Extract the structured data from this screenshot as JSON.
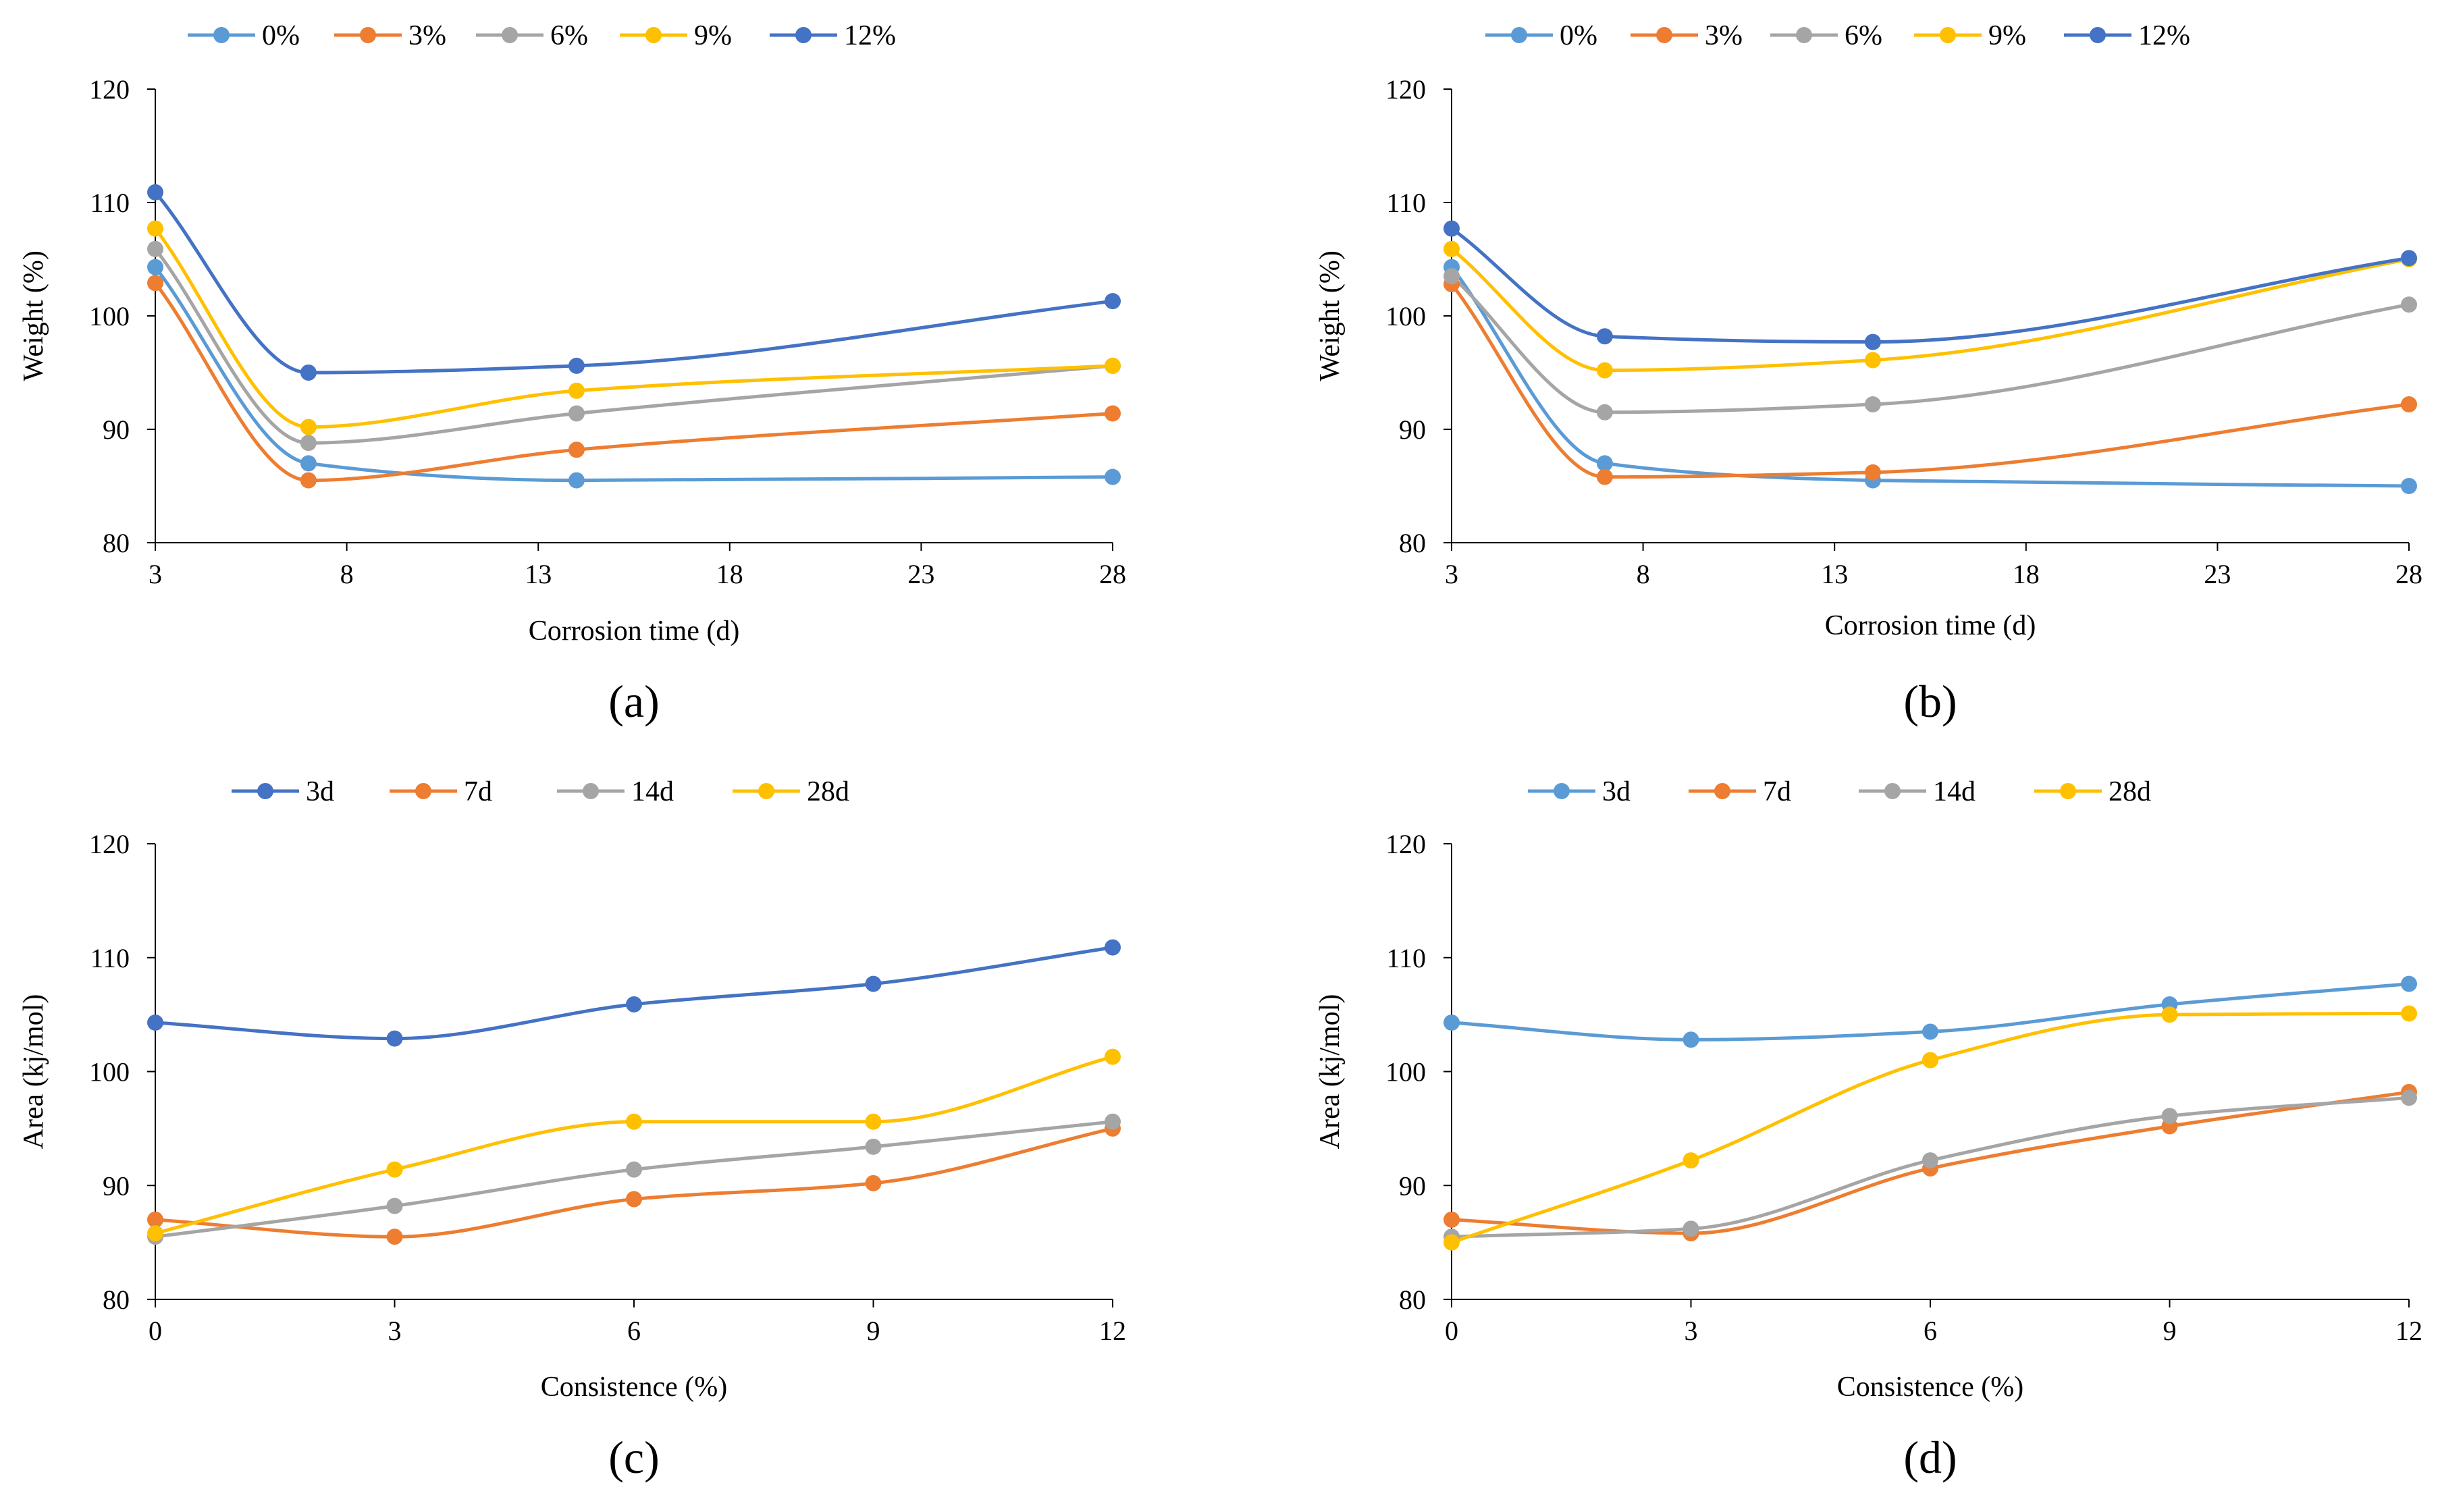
{
  "chart_data": [
    {
      "id": "a",
      "panel_label": "(a)",
      "type": "line",
      "title": "",
      "xlabel": "Corrosion time (d)",
      "ylabel": "Weight (%)",
      "xlim": [
        3,
        28
      ],
      "ylim": [
        80,
        120
      ],
      "xticks": [
        3,
        8,
        13,
        18,
        23,
        28
      ],
      "yticks": [
        80,
        90,
        100,
        110,
        120
      ],
      "grid": false,
      "legend_position": "top",
      "x": [
        3,
        7,
        14,
        28
      ],
      "series": [
        {
          "name": "0%",
          "color": "#5B9BD5",
          "values": [
            104.3,
            87.0,
            85.5,
            85.8
          ]
        },
        {
          "name": "3%",
          "color": "#ED7D31",
          "values": [
            102.9,
            85.5,
            88.2,
            91.4
          ]
        },
        {
          "name": "6%",
          "color": "#A5A5A5",
          "values": [
            105.9,
            88.8,
            91.4,
            95.6
          ]
        },
        {
          "name": "9%",
          "color": "#FFC000",
          "values": [
            107.7,
            90.2,
            93.4,
            95.6
          ]
        },
        {
          "name": "12%",
          "color": "#4472C4",
          "values": [
            110.9,
            95.0,
            95.6,
            101.3
          ]
        }
      ]
    },
    {
      "id": "b",
      "panel_label": "(b)",
      "type": "line",
      "title": "",
      "xlabel": "Corrosion time (d)",
      "ylabel": "Weight (%)",
      "xlim": [
        3,
        28
      ],
      "ylim": [
        80,
        120
      ],
      "xticks": [
        3,
        8,
        13,
        18,
        23,
        28
      ],
      "yticks": [
        80,
        90,
        100,
        110,
        120
      ],
      "grid": false,
      "legend_position": "top",
      "x": [
        3,
        7,
        14,
        28
      ],
      "series": [
        {
          "name": "0%",
          "color": "#5B9BD5",
          "values": [
            104.3,
            87.0,
            85.5,
            85.0
          ]
        },
        {
          "name": "3%",
          "color": "#ED7D31",
          "values": [
            102.8,
            85.8,
            86.2,
            92.2
          ]
        },
        {
          "name": "6%",
          "color": "#A5A5A5",
          "values": [
            103.5,
            91.5,
            92.2,
            101.0
          ]
        },
        {
          "name": "9%",
          "color": "#FFC000",
          "values": [
            105.9,
            95.2,
            96.1,
            105.0
          ]
        },
        {
          "name": "12%",
          "color": "#4472C4",
          "values": [
            107.7,
            98.2,
            97.7,
            105.1
          ]
        }
      ]
    },
    {
      "id": "c",
      "panel_label": "(c)",
      "type": "line",
      "title": "",
      "xlabel": "Consistence (%)",
      "ylabel": "Area (kj/mol)",
      "xlim": [
        0,
        12
      ],
      "ylim": [
        80,
        120
      ],
      "xticks": [
        0,
        3,
        6,
        9,
        12
      ],
      "yticks": [
        80,
        90,
        100,
        110,
        120
      ],
      "grid": false,
      "legend_position": "top",
      "x": [
        0,
        3,
        6,
        9,
        12
      ],
      "series": [
        {
          "name": "3d",
          "color": "#4472C4",
          "values": [
            104.3,
            102.9,
            105.9,
            107.7,
            110.9
          ]
        },
        {
          "name": "7d",
          "color": "#ED7D31",
          "values": [
            87.0,
            85.5,
            88.8,
            90.2,
            95.0
          ]
        },
        {
          "name": "14d",
          "color": "#A5A5A5",
          "values": [
            85.5,
            88.2,
            91.4,
            93.4,
            95.6
          ]
        },
        {
          "name": "28d",
          "color": "#FFC000",
          "values": [
            85.8,
            91.4,
            95.6,
            95.6,
            101.3
          ]
        }
      ]
    },
    {
      "id": "d",
      "panel_label": "(d)",
      "type": "line",
      "title": "",
      "xlabel": "Consistence (%)",
      "ylabel": "Area (kj/mol)",
      "xlim": [
        0,
        12
      ],
      "ylim": [
        80,
        120
      ],
      "xticks": [
        0,
        3,
        6,
        9,
        12
      ],
      "yticks": [
        80,
        90,
        100,
        110,
        120
      ],
      "grid": false,
      "legend_position": "top",
      "x": [
        0,
        3,
        6,
        9,
        12
      ],
      "series": [
        {
          "name": "3d",
          "color": "#5B9BD5",
          "values": [
            104.3,
            102.8,
            103.5,
            105.9,
            107.7
          ]
        },
        {
          "name": "7d",
          "color": "#ED7D31",
          "values": [
            87.0,
            85.8,
            91.5,
            95.2,
            98.2
          ]
        },
        {
          "name": "14d",
          "color": "#A5A5A5",
          "values": [
            85.5,
            86.2,
            92.2,
            96.1,
            97.7
          ]
        },
        {
          "name": "28d",
          "color": "#FFC000",
          "values": [
            85.0,
            92.2,
            101.0,
            105.0,
            105.1
          ]
        }
      ]
    }
  ]
}
